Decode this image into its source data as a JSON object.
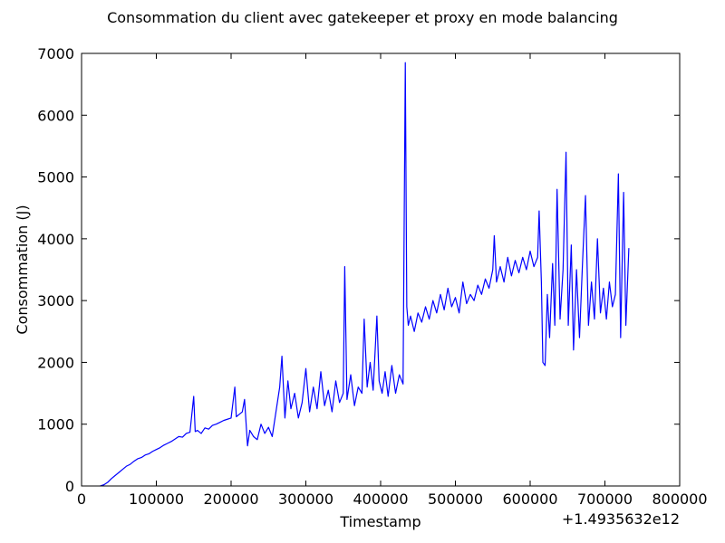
{
  "chart_data": {
    "type": "line",
    "title": "Consommation du client avec gatekeeper et proxy en mode balancing",
    "x_label": "Timestamp",
    "y_label": "Consommation (J)",
    "x_offset_label": "+1.4935632e12",
    "xlim": [
      0,
      800000
    ],
    "xticks": [
      0,
      100000,
      200000,
      300000,
      400000,
      500000,
      600000,
      700000,
      800000
    ],
    "ylim": [
      0,
      7000
    ],
    "yticks": [
      0,
      1000,
      2000,
      3000,
      4000,
      5000,
      6000,
      7000
    ],
    "grid": false,
    "x": [
      25000,
      30000,
      35000,
      40000,
      45000,
      50000,
      55000,
      60000,
      65000,
      70000,
      75000,
      80000,
      85000,
      90000,
      95000,
      100000,
      105000,
      110000,
      115000,
      120000,
      125000,
      130000,
      135000,
      140000,
      145000,
      150000,
      152000,
      155000,
      160000,
      165000,
      170000,
      175000,
      180000,
      185000,
      190000,
      195000,
      200000,
      205000,
      207000,
      210000,
      215000,
      218000,
      222000,
      225000,
      230000,
      235000,
      240000,
      245000,
      250000,
      255000,
      260000,
      265000,
      268000,
      272000,
      276000,
      280000,
      285000,
      290000,
      295000,
      300000,
      305000,
      310000,
      315000,
      320000,
      325000,
      330000,
      335000,
      340000,
      345000,
      350000,
      352000,
      355000,
      360000,
      365000,
      370000,
      375000,
      378000,
      382000,
      386000,
      390000,
      395000,
      398000,
      402000,
      406000,
      410000,
      415000,
      420000,
      425000,
      430000,
      433000,
      435000,
      437000,
      440000,
      445000,
      450000,
      455000,
      460000,
      465000,
      470000,
      475000,
      480000,
      485000,
      490000,
      495000,
      500000,
      505000,
      510000,
      515000,
      520000,
      525000,
      530000,
      535000,
      540000,
      545000,
      550000,
      552000,
      555000,
      560000,
      565000,
      570000,
      575000,
      580000,
      585000,
      590000,
      595000,
      600000,
      605000,
      610000,
      612000,
      615000,
      617000,
      620000,
      623000,
      626000,
      630000,
      633000,
      636000,
      640000,
      644000,
      648000,
      651000,
      655000,
      658000,
      662000,
      666000,
      670000,
      674000,
      678000,
      682000,
      686000,
      690000,
      694000,
      698000,
      702000,
      706000,
      710000,
      714000,
      718000,
      721000,
      725000,
      728000,
      732000
    ],
    "series": [
      {
        "color": "#0000ff",
        "values": [
          0,
          20,
          60,
          120,
          170,
          220,
          270,
          320,
          350,
          400,
          440,
          460,
          500,
          520,
          560,
          590,
          620,
          660,
          690,
          720,
          760,
          800,
          790,
          850,
          870,
          1450,
          880,
          900,
          850,
          940,
          920,
          980,
          1000,
          1030,
          1060,
          1080,
          1100,
          1600,
          1120,
          1150,
          1200,
          1400,
          650,
          900,
          800,
          750,
          1000,
          850,
          950,
          800,
          1200,
          1600,
          2100,
          1100,
          1700,
          1250,
          1500,
          1100,
          1350,
          1900,
          1200,
          1600,
          1250,
          1850,
          1300,
          1550,
          1200,
          1700,
          1350,
          1500,
          3550,
          1400,
          1800,
          1300,
          1600,
          1500,
          2700,
          1600,
          2000,
          1550,
          2750,
          1700,
          1500,
          1850,
          1450,
          1950,
          1500,
          1800,
          1650,
          6850,
          2900,
          2600,
          2750,
          2500,
          2800,
          2650,
          2900,
          2700,
          3000,
          2800,
          3100,
          2850,
          3200,
          2900,
          3050,
          2800,
          3300,
          2950,
          3100,
          3000,
          3250,
          3100,
          3350,
          3200,
          3500,
          4050,
          3300,
          3550,
          3300,
          3700,
          3400,
          3650,
          3450,
          3700,
          3500,
          3800,
          3550,
          3700,
          4450,
          3300,
          2000,
          1950,
          3100,
          2400,
          3600,
          2600,
          4800,
          2700,
          3500,
          5400,
          2600,
          3900,
          2200,
          3500,
          2400,
          3600,
          4700,
          2600,
          3300,
          2700,
          4000,
          2800,
          3200,
          2700,
          3300,
          2900,
          3100,
          5050,
          2400,
          4750,
          2600,
          3850
        ]
      }
    ]
  }
}
